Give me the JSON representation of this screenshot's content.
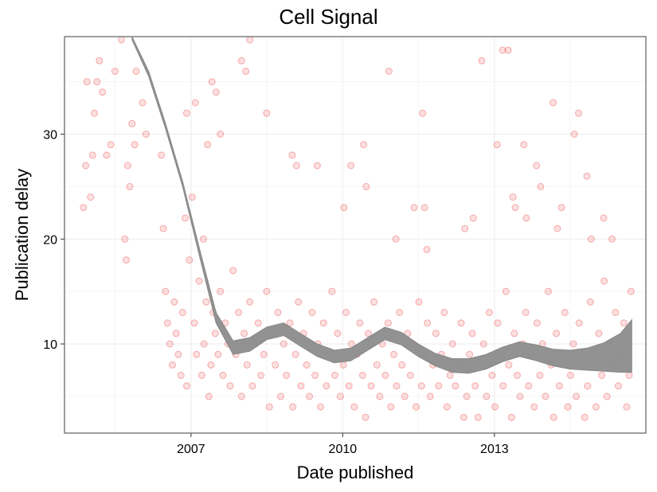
{
  "chart_data": {
    "type": "scatter",
    "title": "Cell Signal",
    "xlabel": "Date published",
    "ylabel": "Publication delay",
    "x_axis": {
      "type": "date",
      "range": [
        "2004-07-01",
        "2015-12-31"
      ],
      "ticks": [
        "2007",
        "2010",
        "2013"
      ]
    },
    "y_axis": {
      "range": [
        1.5,
        39.3
      ],
      "ticks": [
        "10",
        "20",
        "30"
      ]
    },
    "grid": true,
    "legend": "none",
    "colors": {
      "points": "#e8282b",
      "smoother_band": "#8c8c8c",
      "panel_border": "#7f7f7f",
      "grid_major": "#ebebeb",
      "grid_minor": "#f5f5f5"
    },
    "series": [
      {
        "type": "scatter",
        "points": [
          [
            "2004-11-15",
            23
          ],
          [
            "2004-12-01",
            27
          ],
          [
            "2004-12-10",
            35
          ],
          [
            "2005-01-05",
            24
          ],
          [
            "2005-01-20",
            28
          ],
          [
            "2005-02-01",
            32
          ],
          [
            "2005-02-20",
            35
          ],
          [
            "2005-03-10",
            37
          ],
          [
            "2005-04-01",
            34
          ],
          [
            "2005-05-01",
            28
          ],
          [
            "2005-06-01",
            29
          ],
          [
            "2005-07-01",
            36
          ],
          [
            "2005-08-15",
            39
          ],
          [
            "2005-09-10",
            20
          ],
          [
            "2005-09-20",
            18
          ],
          [
            "2005-10-01",
            27
          ],
          [
            "2005-10-15",
            25
          ],
          [
            "2005-11-01",
            31
          ],
          [
            "2005-11-20",
            29
          ],
          [
            "2005-12-01",
            36
          ],
          [
            "2006-01-15",
            33
          ],
          [
            "2006-02-10",
            30
          ],
          [
            "2006-06-01",
            28
          ],
          [
            "2006-06-15",
            21
          ],
          [
            "2006-07-01",
            15
          ],
          [
            "2006-07-15",
            12
          ],
          [
            "2006-08-01",
            10
          ],
          [
            "2006-08-20",
            8
          ],
          [
            "2006-09-01",
            14
          ],
          [
            "2006-09-15",
            11
          ],
          [
            "2006-10-01",
            9
          ],
          [
            "2006-10-20",
            7
          ],
          [
            "2006-11-01",
            13
          ],
          [
            "2006-11-20",
            22
          ],
          [
            "2006-12-01",
            6
          ],
          [
            "2006-12-20",
            18
          ],
          [
            "2007-01-10",
            24
          ],
          [
            "2007-01-25",
            12
          ],
          [
            "2007-02-10",
            9
          ],
          [
            "2007-03-01",
            16
          ],
          [
            "2007-03-20",
            7
          ],
          [
            "2007-04-05",
            10
          ],
          [
            "2007-04-20",
            14
          ],
          [
            "2007-05-10",
            5
          ],
          [
            "2007-05-25",
            8
          ],
          [
            "2007-06-10",
            13
          ],
          [
            "2007-06-25",
            11
          ],
          [
            "2007-07-15",
            9
          ],
          [
            "2007-08-01",
            15
          ],
          [
            "2007-08-20",
            7
          ],
          [
            "2007-09-05",
            12
          ],
          [
            "2007-09-25",
            10
          ],
          [
            "2007-10-10",
            6
          ],
          [
            "2007-11-01",
            17
          ],
          [
            "2007-11-20",
            9
          ],
          [
            "2007-12-10",
            13
          ],
          [
            "2008-01-01",
            5
          ],
          [
            "2008-01-20",
            11
          ],
          [
            "2008-02-10",
            8
          ],
          [
            "2008-03-01",
            14
          ],
          [
            "2008-03-20",
            6
          ],
          [
            "2008-04-10",
            10
          ],
          [
            "2008-05-01",
            12
          ],
          [
            "2008-05-20",
            7
          ],
          [
            "2008-06-10",
            9
          ],
          [
            "2008-07-01",
            15
          ],
          [
            "2008-07-20",
            4
          ],
          [
            "2008-08-10",
            11
          ],
          [
            "2008-09-01",
            8
          ],
          [
            "2008-09-20",
            13
          ],
          [
            "2008-10-10",
            5
          ],
          [
            "2008-11-01",
            10
          ],
          [
            "2008-11-20",
            7
          ],
          [
            "2008-12-15",
            12
          ],
          [
            "2009-01-05",
            4
          ],
          [
            "2009-01-25",
            9
          ],
          [
            "2009-02-15",
            14
          ],
          [
            "2009-03-05",
            6
          ],
          [
            "2009-03-25",
            11
          ],
          [
            "2009-04-15",
            8
          ],
          [
            "2009-05-05",
            5
          ],
          [
            "2009-05-25",
            13
          ],
          [
            "2009-06-15",
            7
          ],
          [
            "2009-07-05",
            10
          ],
          [
            "2009-07-25",
            4
          ],
          [
            "2009-08-15",
            12
          ],
          [
            "2009-09-05",
            6
          ],
          [
            "2009-09-25",
            9
          ],
          [
            "2009-10-15",
            15
          ],
          [
            "2009-11-05",
            7
          ],
          [
            "2009-11-25",
            11
          ],
          [
            "2009-12-15",
            5
          ],
          [
            "2010-01-05",
            8
          ],
          [
            "2010-01-25",
            13
          ],
          [
            "2010-02-15",
            6
          ],
          [
            "2010-03-05",
            10
          ],
          [
            "2010-03-25",
            4
          ],
          [
            "2010-04-15",
            9
          ],
          [
            "2010-05-05",
            12
          ],
          [
            "2010-05-25",
            7
          ],
          [
            "2010-06-15",
            3
          ],
          [
            "2010-07-05",
            11
          ],
          [
            "2010-07-25",
            6
          ],
          [
            "2010-08-15",
            14
          ],
          [
            "2010-09-05",
            8
          ],
          [
            "2010-09-25",
            5
          ],
          [
            "2010-10-15",
            10
          ],
          [
            "2010-11-05",
            7
          ],
          [
            "2010-11-25",
            12
          ],
          [
            "2010-12-15",
            4
          ],
          [
            "2011-01-05",
            9
          ],
          [
            "2011-01-25",
            6
          ],
          [
            "2011-02-15",
            13
          ],
          [
            "2011-03-05",
            8
          ],
          [
            "2011-03-25",
            5
          ],
          [
            "2011-04-15",
            11
          ],
          [
            "2011-05-05",
            7
          ],
          [
            "2011-05-25",
            10
          ],
          [
            "2011-06-15",
            4
          ],
          [
            "2011-07-05",
            14
          ],
          [
            "2011-07-25",
            6
          ],
          [
            "2011-08-15",
            9
          ],
          [
            "2011-09-05",
            12
          ],
          [
            "2011-09-25",
            5
          ],
          [
            "2011-10-15",
            8
          ],
          [
            "2011-11-05",
            11
          ],
          [
            "2011-11-25",
            6
          ],
          [
            "2011-12-15",
            9
          ],
          [
            "2012-01-05",
            13
          ],
          [
            "2012-01-25",
            4
          ],
          [
            "2012-02-15",
            7
          ],
          [
            "2012-03-05",
            10
          ],
          [
            "2012-03-25",
            6
          ],
          [
            "2012-04-15",
            8
          ],
          [
            "2012-05-05",
            12
          ],
          [
            "2012-05-25",
            3
          ],
          [
            "2012-06-15",
            5
          ],
          [
            "2012-07-05",
            9
          ],
          [
            "2012-07-25",
            11
          ],
          [
            "2012-08-15",
            6
          ],
          [
            "2012-09-05",
            3
          ],
          [
            "2012-09-25",
            8
          ],
          [
            "2012-10-15",
            10
          ],
          [
            "2012-11-05",
            5
          ],
          [
            "2012-11-25",
            13
          ],
          [
            "2012-12-15",
            7
          ],
          [
            "2013-01-05",
            4
          ],
          [
            "2013-01-25",
            12
          ],
          [
            "2013-02-15",
            9
          ],
          [
            "2013-03-05",
            6
          ],
          [
            "2013-03-25",
            15
          ],
          [
            "2013-04-15",
            8
          ],
          [
            "2013-05-05",
            3
          ],
          [
            "2013-05-25",
            11
          ],
          [
            "2013-06-15",
            7
          ],
          [
            "2013-07-05",
            5
          ],
          [
            "2013-07-25",
            10
          ],
          [
            "2013-08-15",
            13
          ],
          [
            "2013-09-05",
            6
          ],
          [
            "2013-09-25",
            9
          ],
          [
            "2013-10-15",
            4
          ],
          [
            "2013-11-05",
            12
          ],
          [
            "2013-11-25",
            7
          ],
          [
            "2013-12-15",
            10
          ],
          [
            "2014-01-05",
            5
          ],
          [
            "2014-01-25",
            15
          ],
          [
            "2014-02-15",
            8
          ],
          [
            "2014-03-05",
            3
          ],
          [
            "2014-03-25",
            11
          ],
          [
            "2014-04-15",
            6
          ],
          [
            "2014-05-05",
            9
          ],
          [
            "2014-05-25",
            13
          ],
          [
            "2014-06-15",
            4
          ],
          [
            "2014-07-05",
            7
          ],
          [
            "2014-07-25",
            10
          ],
          [
            "2014-08-15",
            5
          ],
          [
            "2014-09-05",
            12
          ],
          [
            "2014-09-25",
            8
          ],
          [
            "2014-10-15",
            3
          ],
          [
            "2014-11-05",
            6
          ],
          [
            "2014-11-25",
            14
          ],
          [
            "2014-12-15",
            9
          ],
          [
            "2015-01-05",
            4
          ],
          [
            "2015-01-25",
            11
          ],
          [
            "2015-02-15",
            7
          ],
          [
            "2015-03-05",
            16
          ],
          [
            "2015-03-25",
            5
          ],
          [
            "2015-04-15",
            10
          ],
          [
            "2015-05-05",
            8
          ],
          [
            "2015-05-25",
            13
          ],
          [
            "2015-06-15",
            6
          ],
          [
            "2015-07-05",
            9
          ],
          [
            "2015-07-25",
            12
          ],
          [
            "2015-08-15",
            4
          ],
          [
            "2015-09-01",
            7
          ],
          [
            "2015-09-15",
            15
          ],
          [
            "2012-10-01",
            37
          ],
          [
            "2013-01-20",
            29
          ],
          [
            "2013-03-01",
            38
          ],
          [
            "2013-04-10",
            38
          ],
          [
            "2013-05-15",
            24
          ],
          [
            "2013-06-01",
            23
          ],
          [
            "2010-12-01",
            36
          ],
          [
            "2011-01-20",
            20
          ],
          [
            "2011-06-01",
            23
          ],
          [
            "2011-08-01",
            32
          ],
          [
            "2011-08-15",
            23
          ],
          [
            "2011-09-01",
            19
          ],
          [
            "2008-01-01",
            37
          ],
          [
            "2008-02-01",
            36
          ],
          [
            "2008-03-01",
            39
          ],
          [
            "2008-07-01",
            32
          ],
          [
            "2009-01-01",
            28
          ],
          [
            "2009-02-01",
            27
          ],
          [
            "2009-07-01",
            27
          ],
          [
            "2010-01-10",
            23
          ],
          [
            "2010-03-01",
            27
          ],
          [
            "2010-06-01",
            29
          ],
          [
            "2010-06-20",
            25
          ],
          [
            "2007-06-01",
            35
          ],
          [
            "2007-07-01",
            34
          ],
          [
            "2007-08-01",
            30
          ],
          [
            "2007-05-01",
            29
          ],
          [
            "2007-04-01",
            20
          ],
          [
            "2007-02-01",
            33
          ],
          [
            "2006-12-01",
            32
          ],
          [
            "2014-03-01",
            33
          ],
          [
            "2014-08-01",
            30
          ],
          [
            "2014-09-01",
            32
          ],
          [
            "2014-11-01",
            26
          ],
          [
            "2015-03-01",
            22
          ],
          [
            "2015-05-01",
            20
          ],
          [
            "2014-12-01",
            20
          ],
          [
            "2012-06-01",
            21
          ],
          [
            "2012-08-01",
            22
          ],
          [
            "2013-08-01",
            29
          ],
          [
            "2013-08-20",
            22
          ],
          [
            "2013-11-01",
            27
          ],
          [
            "2013-12-01",
            25
          ],
          [
            "2014-04-01",
            21
          ],
          [
            "2014-05-01",
            23
          ]
        ]
      },
      {
        "type": "smooth-band",
        "x": [
          "2005-11-01",
          "2006-03-01",
          "2006-07-01",
          "2006-11-01",
          "2007-03-01",
          "2007-07-01",
          "2007-11-01",
          "2008-03-01",
          "2008-07-01",
          "2008-11-01",
          "2009-03-01",
          "2009-07-01",
          "2009-11-01",
          "2010-03-01",
          "2010-07-01",
          "2010-11-01",
          "2011-03-01",
          "2011-07-01",
          "2011-11-01",
          "2012-03-01",
          "2012-07-01",
          "2012-11-01",
          "2013-03-01",
          "2013-07-01",
          "2013-11-01",
          "2014-03-01",
          "2014-07-01",
          "2014-11-01",
          "2015-03-01",
          "2015-07-01",
          "2015-09-20"
        ],
        "lower": [
          39.0,
          35.5,
          30.5,
          25.0,
          18.5,
          12.0,
          9.0,
          9.3,
          10.4,
          10.8,
          9.8,
          8.8,
          8.2,
          8.4,
          9.4,
          10.4,
          9.9,
          8.8,
          7.9,
          7.3,
          7.2,
          7.6,
          8.3,
          8.8,
          8.4,
          7.9,
          7.6,
          7.5,
          7.4,
          7.3,
          7.3
        ],
        "upper": [
          39.3,
          36.0,
          31.0,
          25.5,
          19.2,
          13.0,
          10.3,
          10.6,
          11.6,
          12.0,
          11.0,
          10.0,
          9.4,
          9.6,
          10.6,
          11.6,
          11.1,
          10.0,
          9.1,
          8.6,
          8.6,
          9.0,
          9.7,
          10.2,
          9.9,
          9.5,
          9.4,
          9.6,
          10.1,
          11.0,
          12.3
        ]
      }
    ]
  }
}
